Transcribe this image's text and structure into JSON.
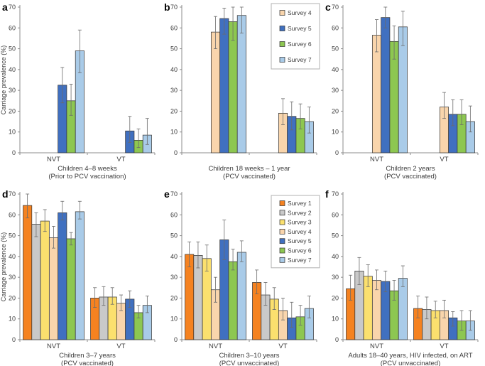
{
  "figure": {
    "ylabel": "Carriage prevalence (%)",
    "series_order": [
      "Survey 1",
      "Survey 2",
      "Survey 3",
      "Survey 4",
      "Survey 5",
      "Survey 6",
      "Survey 7"
    ],
    "colors": {
      "Survey 1": "#F58220",
      "Survey 2": "#C9C9C9",
      "Survey 3": "#FBE06E",
      "Survey 4": "#F9D5AC",
      "Survey 5": "#4070C0",
      "Survey 6": "#8DC751",
      "Survey 7": "#A9CBE8"
    },
    "bar_border_color": "#3A3A3A",
    "error_bar_color": "#6B6B6B",
    "axis_color": "#8C8C8C",
    "text_color": "#3C3C3C",
    "legend_border_color": "#B0B0B0"
  },
  "chart_data": [
    {
      "panel_letter": "a",
      "type": "bar",
      "title": "Children 4–8 weeks",
      "subtitle": "(Prior to PCV vaccination)",
      "categories": [
        "NVT",
        "VT"
      ],
      "show_category_labels": true,
      "show_ylabel": true,
      "ylim": [
        0,
        70
      ],
      "yticks": [
        0,
        10,
        20,
        30,
        40,
        50,
        60,
        70
      ],
      "legend": null,
      "series": [
        {
          "name": "Survey 5",
          "values": [
            32.5,
            10.5
          ],
          "err_lo": [
            24,
            5
          ],
          "err_hi": [
            41,
            17.5
          ]
        },
        {
          "name": "Survey 6",
          "values": [
            25,
            6
          ],
          "err_lo": [
            18,
            2.5
          ],
          "err_hi": [
            33,
            11.5
          ]
        },
        {
          "name": "Survey 7",
          "values": [
            49,
            8.5
          ],
          "err_lo": [
            38.5,
            4
          ],
          "err_hi": [
            59,
            16.5
          ]
        }
      ]
    },
    {
      "panel_letter": "b",
      "type": "bar",
      "title": "Children 18 weeks – 1 year",
      "subtitle": "(PCV vaccinated)",
      "categories": [
        "NVT",
        "VT"
      ],
      "show_category_labels": false,
      "show_ylabel": false,
      "ylim": [
        0,
        70
      ],
      "yticks": [
        0,
        10,
        20,
        30,
        40,
        50,
        60,
        70
      ],
      "legend": [
        "Survey 4",
        "Survey 5",
        "Survey 6",
        "Survey 7"
      ],
      "series": [
        {
          "name": "Survey 4",
          "values": [
            58,
            19
          ],
          "err_lo": [
            50,
            13.5
          ],
          "err_hi": [
            65.5,
            26
          ]
        },
        {
          "name": "Survey 5",
          "values": [
            64.5,
            17.5
          ],
          "err_lo": [
            57,
            11
          ],
          "err_hi": [
            69.5,
            24.5
          ]
        },
        {
          "name": "Survey 6",
          "values": [
            63,
            16.5
          ],
          "err_lo": [
            54,
            11.5
          ],
          "err_hi": [
            70,
            23.5
          ]
        },
        {
          "name": "Survey 7",
          "values": [
            66,
            15
          ],
          "err_lo": [
            57.5,
            9.5
          ],
          "err_hi": [
            70,
            22
          ]
        }
      ]
    },
    {
      "panel_letter": "c",
      "type": "bar",
      "title": "Children 2 years",
      "subtitle": "(PCV vaccinated)",
      "categories": [
        "NVT",
        "VT"
      ],
      "show_category_labels": true,
      "show_ylabel": false,
      "ylim": [
        0,
        70
      ],
      "yticks": [
        0,
        10,
        20,
        30,
        40,
        50,
        60,
        70
      ],
      "legend": null,
      "series": [
        {
          "name": "Survey 4",
          "values": [
            56.5,
            22
          ],
          "err_lo": [
            48.5,
            16.5
          ],
          "err_hi": [
            64,
            29
          ]
        },
        {
          "name": "Survey 5",
          "values": [
            65,
            18.5
          ],
          "err_lo": [
            60,
            13
          ],
          "err_hi": [
            70,
            25.5
          ]
        },
        {
          "name": "Survey 6",
          "values": [
            53.5,
            18.5
          ],
          "err_lo": [
            45,
            13.5
          ],
          "err_hi": [
            61,
            25.5
          ]
        },
        {
          "name": "Survey 7",
          "values": [
            60.5,
            15
          ],
          "err_lo": [
            51.5,
            10
          ],
          "err_hi": [
            68,
            22.5
          ]
        }
      ]
    },
    {
      "panel_letter": "d",
      "type": "bar",
      "title": "Children 3–7 years",
      "subtitle": "(PCV vaccinated)",
      "categories": [
        "NVT",
        "VT"
      ],
      "show_category_labels": true,
      "show_ylabel": true,
      "ylim": [
        0,
        70
      ],
      "yticks": [
        0,
        10,
        20,
        30,
        40,
        50,
        60,
        70
      ],
      "legend": null,
      "series": [
        {
          "name": "Survey 1",
          "values": [
            64.5,
            20
          ],
          "err_lo": [
            58.5,
            15.5
          ],
          "err_hi": [
            70,
            25
          ]
        },
        {
          "name": "Survey 2",
          "values": [
            55.5,
            20.5
          ],
          "err_lo": [
            49.5,
            16.5
          ],
          "err_hi": [
            61,
            25.5
          ]
        },
        {
          "name": "Survey 3",
          "values": [
            57,
            20.5
          ],
          "err_lo": [
            52,
            17
          ],
          "err_hi": [
            62.5,
            25
          ]
        },
        {
          "name": "Survey 4",
          "values": [
            49,
            17.5
          ],
          "err_lo": [
            44,
            14
          ],
          "err_hi": [
            54.5,
            21.5
          ]
        },
        {
          "name": "Survey 5",
          "values": [
            61,
            19.5
          ],
          "err_lo": [
            57.5,
            15.5
          ],
          "err_hi": [
            66.5,
            23.5
          ]
        },
        {
          "name": "Survey 6",
          "values": [
            48.5,
            13
          ],
          "err_lo": [
            45.5,
            10.5
          ],
          "err_hi": [
            51.5,
            16.5
          ]
        },
        {
          "name": "Survey 7",
          "values": [
            61.5,
            16.5
          ],
          "err_lo": [
            58,
            13
          ],
          "err_hi": [
            66.5,
            21
          ]
        }
      ]
    },
    {
      "panel_letter": "e",
      "type": "bar",
      "title": "Children 3–10 years",
      "subtitle": "(PCV unvaccinated)",
      "categories": [
        "NVT",
        "VT"
      ],
      "show_category_labels": true,
      "show_ylabel": false,
      "ylim": [
        0,
        70
      ],
      "yticks": [
        0,
        10,
        20,
        30,
        40,
        50,
        60,
        70
      ],
      "legend": [
        "Survey 1",
        "Survey 2",
        "Survey 3",
        "Survey 4",
        "Survey 5",
        "Survey 6",
        "Survey 7"
      ],
      "series": [
        {
          "name": "Survey 1",
          "values": [
            41,
            27.5
          ],
          "err_lo": [
            35,
            22
          ],
          "err_hi": [
            47,
            33.5
          ]
        },
        {
          "name": "Survey 2",
          "values": [
            40.5,
            21.5
          ],
          "err_lo": [
            34.5,
            16.5
          ],
          "err_hi": [
            47,
            27.5
          ]
        },
        {
          "name": "Survey 3",
          "values": [
            39,
            19.5
          ],
          "err_lo": [
            33,
            14.5
          ],
          "err_hi": [
            45.5,
            25
          ]
        },
        {
          "name": "Survey 4",
          "values": [
            24,
            14
          ],
          "err_lo": [
            18,
            9.5
          ],
          "err_hi": [
            30,
            20
          ]
        },
        {
          "name": "Survey 5",
          "values": [
            48,
            10.5
          ],
          "err_lo": [
            38.5,
            6
          ],
          "err_hi": [
            57.5,
            18
          ]
        },
        {
          "name": "Survey 6",
          "values": [
            37.5,
            11
          ],
          "err_lo": [
            33.5,
            7
          ],
          "err_hi": [
            43.5,
            16.5
          ]
        },
        {
          "name": "Survey 7",
          "values": [
            42,
            15
          ],
          "err_lo": [
            37.5,
            10.5
          ],
          "err_hi": [
            47.5,
            21
          ]
        }
      ]
    },
    {
      "panel_letter": "f",
      "type": "bar",
      "title": "Adults 18–40 years, HIV infected, on ART",
      "subtitle": "(PCV unvaccinated)",
      "categories": [
        "NVT",
        "VT"
      ],
      "show_category_labels": true,
      "show_ylabel": false,
      "ylim": [
        0,
        70
      ],
      "yticks": [
        0,
        10,
        20,
        30,
        40,
        50,
        60,
        70
      ],
      "legend": null,
      "series": [
        {
          "name": "Survey 1",
          "values": [
            24.5,
            15
          ],
          "err_lo": [
            19,
            10.5
          ],
          "err_hi": [
            31,
            21
          ]
        },
        {
          "name": "Survey 2",
          "values": [
            33,
            14.5
          ],
          "err_lo": [
            26.5,
            10
          ],
          "err_hi": [
            39.5,
            20.5
          ]
        },
        {
          "name": "Survey 3",
          "values": [
            30.5,
            14
          ],
          "err_lo": [
            25.5,
            10.5
          ],
          "err_hi": [
            36,
            18.5
          ]
        },
        {
          "name": "Survey 4",
          "values": [
            28.5,
            14
          ],
          "err_lo": [
            24,
            10.5
          ],
          "err_hi": [
            33.5,
            19
          ]
        },
        {
          "name": "Survey 5",
          "values": [
            28,
            10.5
          ],
          "err_lo": [
            23,
            6.5
          ],
          "err_hi": [
            33,
            13.5
          ]
        },
        {
          "name": "Survey 6",
          "values": [
            23.5,
            9
          ],
          "err_lo": [
            19,
            4.5
          ],
          "err_hi": [
            28.5,
            14
          ]
        },
        {
          "name": "Survey 7",
          "values": [
            29.5,
            9
          ],
          "err_lo": [
            25.5,
            4.5
          ],
          "err_hi": [
            35.5,
            14
          ]
        }
      ]
    }
  ]
}
